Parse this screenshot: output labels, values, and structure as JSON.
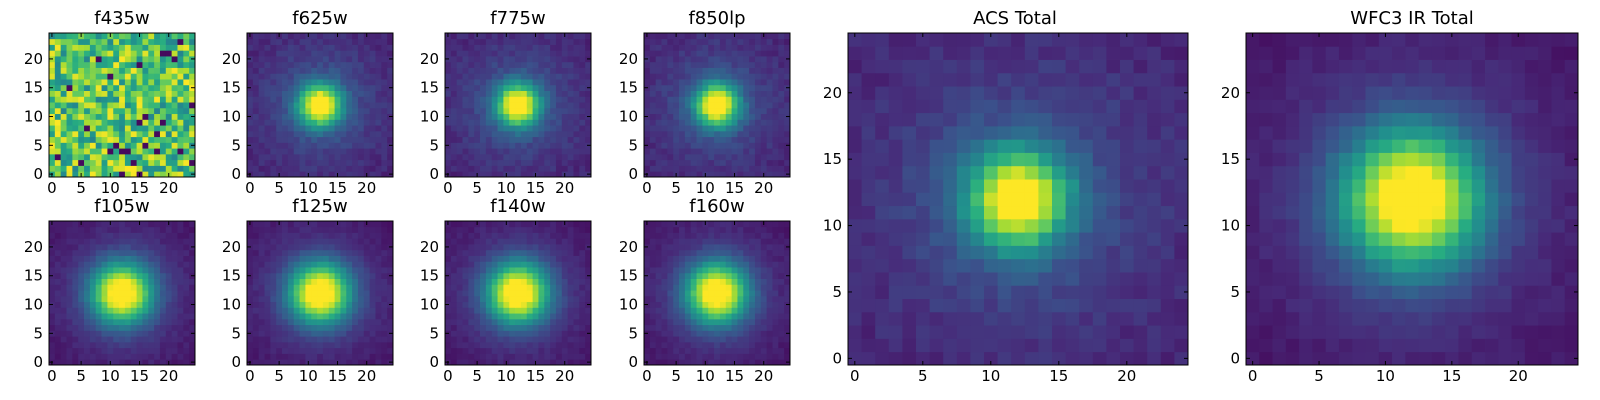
{
  "chart_data": [
    {
      "type": "heatmap",
      "title": "f435w",
      "profile": "noise",
      "grid": 25,
      "xticks": [
        0,
        5,
        10,
        15,
        20
      ],
      "yticks": [
        0,
        5,
        10,
        15,
        20
      ],
      "xlim": [
        -0.5,
        24.5
      ],
      "ylim": [
        -0.5,
        24.5
      ],
      "colormap": "viridis",
      "center": [
        12,
        12
      ],
      "xlabel": "",
      "ylabel": ""
    },
    {
      "type": "heatmap",
      "title": "f625w",
      "profile": "compact-source",
      "grid": 25,
      "xticks": [
        0,
        5,
        10,
        15,
        20
      ],
      "yticks": [
        0,
        5,
        10,
        15,
        20
      ],
      "xlim": [
        -0.5,
        24.5
      ],
      "ylim": [
        -0.5,
        24.5
      ],
      "colormap": "viridis",
      "center": [
        12,
        12
      ],
      "xlabel": "",
      "ylabel": ""
    },
    {
      "type": "heatmap",
      "title": "f775w",
      "profile": "compact-source",
      "grid": 25,
      "xticks": [
        0,
        5,
        10,
        15,
        20
      ],
      "yticks": [
        0,
        5,
        10,
        15,
        20
      ],
      "xlim": [
        -0.5,
        24.5
      ],
      "ylim": [
        -0.5,
        24.5
      ],
      "colormap": "viridis",
      "center": [
        12,
        12
      ],
      "xlabel": "",
      "ylabel": ""
    },
    {
      "type": "heatmap",
      "title": "f850lp",
      "profile": "compact-source",
      "grid": 25,
      "xticks": [
        0,
        5,
        10,
        15,
        20
      ],
      "yticks": [
        0,
        5,
        10,
        15,
        20
      ],
      "xlim": [
        -0.5,
        24.5
      ],
      "ylim": [
        -0.5,
        24.5
      ],
      "colormap": "viridis",
      "center": [
        12,
        12
      ],
      "xlabel": "",
      "ylabel": ""
    },
    {
      "type": "heatmap",
      "title": "f105w",
      "profile": "extended-source",
      "grid": 25,
      "xticks": [
        0,
        5,
        10,
        15,
        20
      ],
      "yticks": [
        0,
        5,
        10,
        15,
        20
      ],
      "xlim": [
        -0.5,
        24.5
      ],
      "ylim": [
        -0.5,
        24.5
      ],
      "colormap": "viridis",
      "center": [
        12,
        12
      ],
      "xlabel": "",
      "ylabel": ""
    },
    {
      "type": "heatmap",
      "title": "f125w",
      "profile": "extended-source",
      "grid": 25,
      "xticks": [
        0,
        5,
        10,
        15,
        20
      ],
      "yticks": [
        0,
        5,
        10,
        15,
        20
      ],
      "xlim": [
        -0.5,
        24.5
      ],
      "ylim": [
        -0.5,
        24.5
      ],
      "colormap": "viridis",
      "center": [
        12,
        12
      ],
      "xlabel": "",
      "ylabel": ""
    },
    {
      "type": "heatmap",
      "title": "f140w",
      "profile": "extended-source",
      "grid": 25,
      "xticks": [
        0,
        5,
        10,
        15,
        20
      ],
      "yticks": [
        0,
        5,
        10,
        15,
        20
      ],
      "xlim": [
        -0.5,
        24.5
      ],
      "ylim": [
        -0.5,
        24.5
      ],
      "colormap": "viridis",
      "center": [
        12,
        12
      ],
      "xlabel": "",
      "ylabel": ""
    },
    {
      "type": "heatmap",
      "title": "f160w",
      "profile": "extended-source",
      "grid": 25,
      "xticks": [
        0,
        5,
        10,
        15,
        20
      ],
      "yticks": [
        0,
        5,
        10,
        15,
        20
      ],
      "xlim": [
        -0.5,
        24.5
      ],
      "ylim": [
        -0.5,
        24.5
      ],
      "colormap": "viridis",
      "center": [
        12,
        12
      ],
      "xlabel": "",
      "ylabel": ""
    },
    {
      "type": "heatmap",
      "title": "ACS Total",
      "profile": "compact-source",
      "grid": 25,
      "xticks": [
        0,
        5,
        10,
        15,
        20
      ],
      "yticks": [
        0,
        5,
        10,
        15,
        20
      ],
      "xlim": [
        -0.5,
        24.5
      ],
      "ylim": [
        -0.5,
        24.5
      ],
      "colormap": "viridis",
      "center": [
        12,
        12
      ],
      "xlabel": "",
      "ylabel": ""
    },
    {
      "type": "heatmap",
      "title": "WFC3 IR Total",
      "profile": "extended-source",
      "grid": 25,
      "xticks": [
        0,
        5,
        10,
        15,
        20
      ],
      "yticks": [
        0,
        5,
        10,
        15,
        20
      ],
      "xlim": [
        -0.5,
        24.5
      ],
      "ylim": [
        -0.5,
        24.5
      ],
      "colormap": "viridis",
      "center": [
        12,
        12
      ],
      "xlabel": "",
      "ylabel": ""
    }
  ]
}
